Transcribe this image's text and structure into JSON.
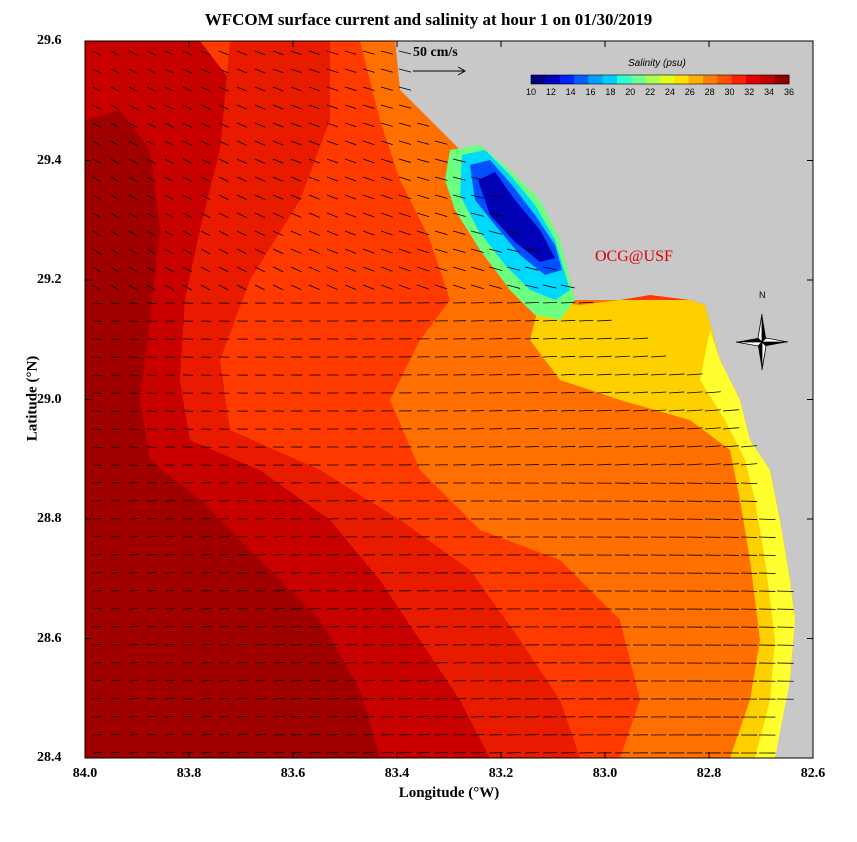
{
  "title": "WFCOM surface current and salinity at hour 1 on 01/30/2019",
  "axes": {
    "xlabel": "Longitude (°W)",
    "ylabel": "Latitude (°N)",
    "xticks": [
      "84.0",
      "83.8",
      "83.6",
      "83.4",
      "83.2",
      "83.0",
      "82.8",
      "82.6"
    ],
    "yticks": [
      "29.6",
      "29.4",
      "29.2",
      "29.0",
      "28.8",
      "28.6",
      "28.4"
    ],
    "xlim": [
      84.0,
      82.6
    ],
    "ylim": [
      28.4,
      29.6
    ]
  },
  "colorbar": {
    "label": "Salinity (psu)",
    "ticks": [
      "10",
      "12",
      "14",
      "16",
      "18",
      "20",
      "22",
      "24",
      "26",
      "28",
      "30",
      "32",
      "34",
      "36"
    ],
    "range": [
      10,
      36
    ]
  },
  "scale_arrow": {
    "label": "50 cm/s"
  },
  "watermark": "OCG@USF",
  "north_arrow": {
    "label": "N"
  },
  "colors": {
    "land": "#c8c8c8",
    "salinity_high": "#a00000",
    "salinity_low": "#0000c8"
  }
}
